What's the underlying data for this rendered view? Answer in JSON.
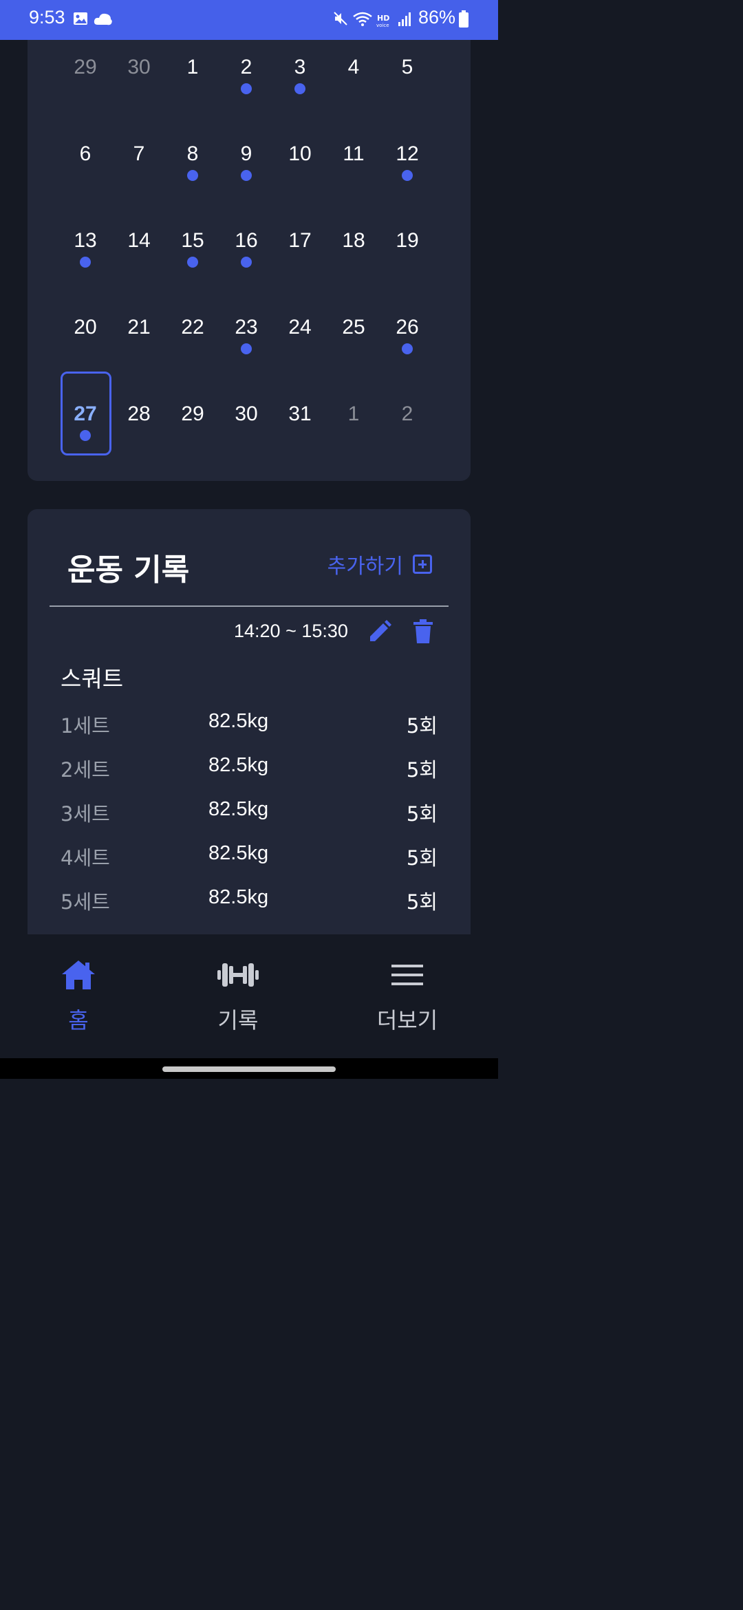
{
  "status_bar": {
    "time": "9:53",
    "battery": "86%",
    "icons": [
      "gallery-icon",
      "cloud-icon",
      "mute-icon",
      "wifi-icon",
      "hd-voice-icon",
      "signal-icon",
      "battery-icon"
    ]
  },
  "calendar": {
    "accent_color": "#4963ee",
    "days": [
      {
        "label": "29",
        "muted": true,
        "dot": false
      },
      {
        "label": "30",
        "muted": true,
        "dot": false
      },
      {
        "label": "1",
        "muted": false,
        "dot": false
      },
      {
        "label": "2",
        "muted": false,
        "dot": true
      },
      {
        "label": "3",
        "muted": false,
        "dot": true
      },
      {
        "label": "4",
        "muted": false,
        "dot": false
      },
      {
        "label": "5",
        "muted": false,
        "dot": false
      },
      {
        "label": "6",
        "muted": false,
        "dot": false
      },
      {
        "label": "7",
        "muted": false,
        "dot": false
      },
      {
        "label": "8",
        "muted": false,
        "dot": true
      },
      {
        "label": "9",
        "muted": false,
        "dot": true
      },
      {
        "label": "10",
        "muted": false,
        "dot": false
      },
      {
        "label": "11",
        "muted": false,
        "dot": false
      },
      {
        "label": "12",
        "muted": false,
        "dot": true
      },
      {
        "label": "13",
        "muted": false,
        "dot": true
      },
      {
        "label": "14",
        "muted": false,
        "dot": false
      },
      {
        "label": "15",
        "muted": false,
        "dot": true
      },
      {
        "label": "16",
        "muted": false,
        "dot": true
      },
      {
        "label": "17",
        "muted": false,
        "dot": false
      },
      {
        "label": "18",
        "muted": false,
        "dot": false
      },
      {
        "label": "19",
        "muted": false,
        "dot": false
      },
      {
        "label": "20",
        "muted": false,
        "dot": false
      },
      {
        "label": "21",
        "muted": false,
        "dot": false
      },
      {
        "label": "22",
        "muted": false,
        "dot": false
      },
      {
        "label": "23",
        "muted": false,
        "dot": true
      },
      {
        "label": "24",
        "muted": false,
        "dot": false
      },
      {
        "label": "25",
        "muted": false,
        "dot": false
      },
      {
        "label": "26",
        "muted": false,
        "dot": true
      },
      {
        "label": "27",
        "muted": false,
        "dot": true,
        "selected": true
      },
      {
        "label": "28",
        "muted": false,
        "dot": false
      },
      {
        "label": "29",
        "muted": false,
        "dot": false
      },
      {
        "label": "30",
        "muted": false,
        "dot": false
      },
      {
        "label": "31",
        "muted": false,
        "dot": false
      },
      {
        "label": "1",
        "muted": true,
        "dot": false
      },
      {
        "label": "2",
        "muted": true,
        "dot": false
      }
    ]
  },
  "workout": {
    "title": "운동 기록",
    "add_label": "추가하기",
    "time_range": "14:20 ~ 15:30",
    "exercise_name": "스쿼트",
    "sets": [
      {
        "label": "1세트",
        "weight": "82.5kg",
        "reps": "5회"
      },
      {
        "label": "2세트",
        "weight": "82.5kg",
        "reps": "5회"
      },
      {
        "label": "3세트",
        "weight": "82.5kg",
        "reps": "5회"
      },
      {
        "label": "4세트",
        "weight": "82.5kg",
        "reps": "5회"
      },
      {
        "label": "5세트",
        "weight": "82.5kg",
        "reps": "5회"
      }
    ]
  },
  "nav": {
    "home_label": "홈",
    "records_label": "기록",
    "more_label": "더보기",
    "active": "home",
    "active_color": "#4963ee"
  }
}
